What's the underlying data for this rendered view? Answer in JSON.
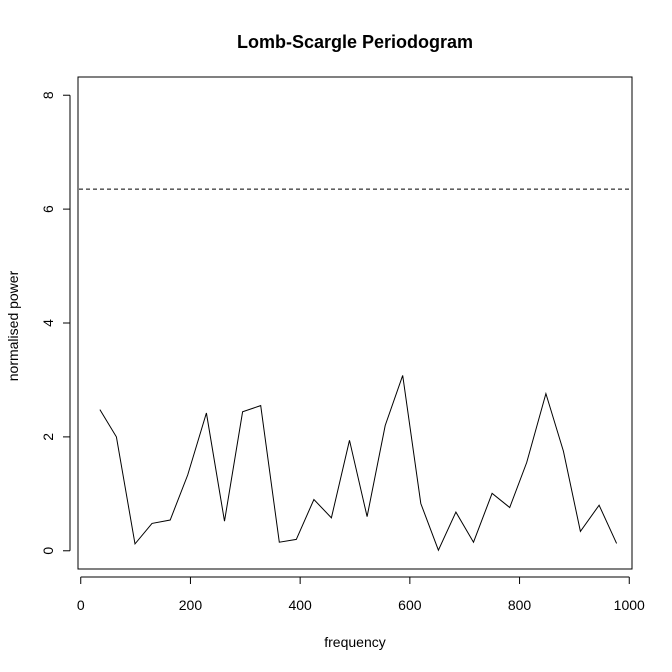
{
  "chart_data": {
    "type": "line",
    "title": "Lomb-Scargle Periodogram",
    "xlabel": "frequency",
    "ylabel": "normalised power",
    "xlim": [
      -5,
      1005
    ],
    "ylim": [
      -0.32,
      8.32
    ],
    "x_ticks": [
      0,
      200,
      400,
      600,
      800,
      1000
    ],
    "x_tick_labels": [
      "0",
      "200",
      "400",
      "600",
      "800",
      "1000"
    ],
    "y_ticks": [
      0,
      2,
      4,
      6,
      8
    ],
    "y_tick_labels": [
      "0",
      "2",
      "4",
      "6",
      "8"
    ],
    "grid": false,
    "threshold": {
      "y": 6.35,
      "style": "dashed"
    },
    "series": [
      {
        "x": [
          35,
          65,
          99,
          130,
          163,
          195,
          229,
          262,
          295,
          328,
          362,
          393,
          425,
          457,
          490,
          522,
          555,
          587,
          620,
          652,
          684,
          716,
          750,
          782,
          813,
          848,
          880,
          911,
          945,
          977
        ],
        "y": [
          2.48,
          2.0,
          0.12,
          0.48,
          0.54,
          1.33,
          2.42,
          0.52,
          2.44,
          2.55,
          0.15,
          0.2,
          0.9,
          0.58,
          1.94,
          0.6,
          2.2,
          3.08,
          0.83,
          0.01,
          0.68,
          0.15,
          1.01,
          0.76,
          1.55,
          2.76,
          1.75,
          0.34,
          0.8,
          0.13
        ]
      }
    ]
  }
}
